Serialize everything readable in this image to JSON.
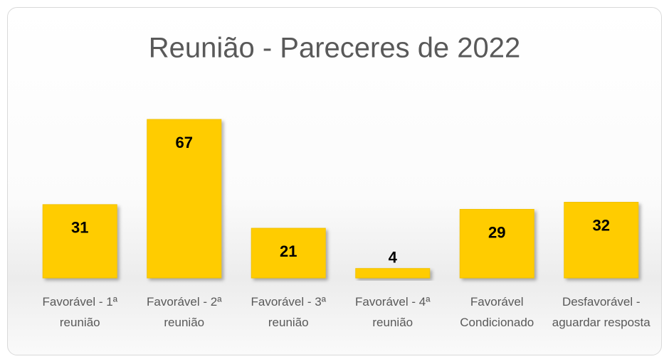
{
  "chart_data": {
    "type": "bar",
    "title": "Reunião - Pareceres  de 2022",
    "categories": [
      "Favorável - 1ª reunião",
      "Favorável - 2ª reunião",
      "Favorável - 3ª reunião",
      "Favorável - 4ª reunião",
      "Favorável Condicionado",
      "Desfavorável - aguardar resposta"
    ],
    "values": [
      31,
      67,
      21,
      4,
      29,
      32
    ],
    "color": "#ffcc00"
  }
}
